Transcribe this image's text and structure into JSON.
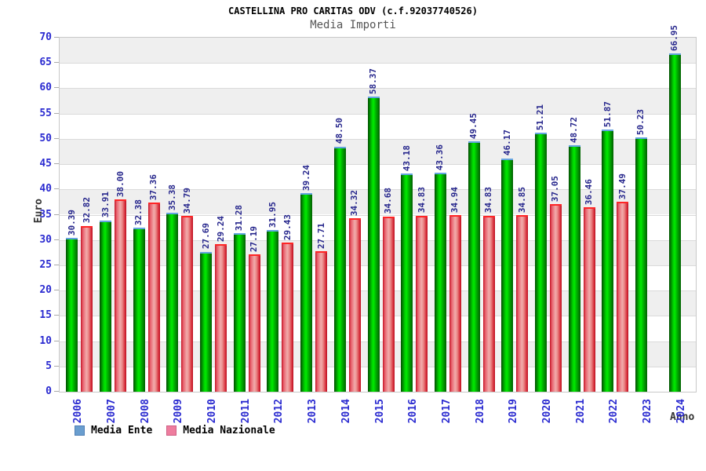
{
  "title": "CASTELLINA PRO CARITAS ODV (c.f.92037740526)",
  "subtitle": "Media Importi",
  "chart_data": {
    "type": "bar",
    "title": "CASTELLINA PRO CARITAS ODV (c.f.92037740526)",
    "subtitle": "Media Importi",
    "xlabel": "Anno",
    "ylabel": "Euro",
    "ylim": [
      0,
      70
    ],
    "ytick_step": 5,
    "yticks": [
      0,
      5,
      10,
      15,
      20,
      25,
      30,
      35,
      40,
      45,
      50,
      55,
      60,
      65,
      70
    ],
    "grid": "horizontal-bands-alternating",
    "legend_position": "bottom-left",
    "value_labels": true,
    "value_label_decimals": 2,
    "categories": [
      "2006",
      "2007",
      "2008",
      "2009",
      "2010",
      "2011",
      "2012",
      "2013",
      "2014",
      "2015",
      "2016",
      "2017",
      "2018",
      "2019",
      "2020",
      "2021",
      "2022",
      "2023",
      "2024"
    ],
    "series": [
      {
        "name": "Media Ente",
        "bar_style": "green",
        "bar_color": "#00c800",
        "bar_cap_color": "#64a4e0",
        "legend_color": "#6a9ecf",
        "legend_border": "#4f7fb5",
        "values": [
          30.39,
          33.91,
          32.38,
          35.38,
          27.69,
          31.28,
          31.95,
          39.24,
          48.5,
          58.37,
          43.18,
          43.36,
          49.45,
          46.17,
          51.21,
          48.72,
          51.87,
          50.23,
          66.95
        ]
      },
      {
        "name": "Media Nazionale",
        "bar_style": "red",
        "bar_color": "#e05060",
        "bar_cap_color": "#ff2525",
        "legend_color": "#ee7d9e",
        "legend_border": "#cf5f85",
        "values": [
          32.82,
          38.0,
          37.36,
          34.79,
          29.24,
          27.19,
          29.43,
          27.71,
          34.32,
          34.68,
          34.83,
          34.94,
          34.83,
          34.85,
          37.05,
          36.46,
          37.49,
          null,
          null
        ]
      }
    ]
  },
  "colors": {
    "axis_tick_label": "#2a2ad0",
    "value_label": "#26268c",
    "band_gray": "#efefef",
    "gridline": "#dadada",
    "plot_border": "#c8c8c8",
    "subtitle": "#555555",
    "axis_title": "#333333"
  }
}
